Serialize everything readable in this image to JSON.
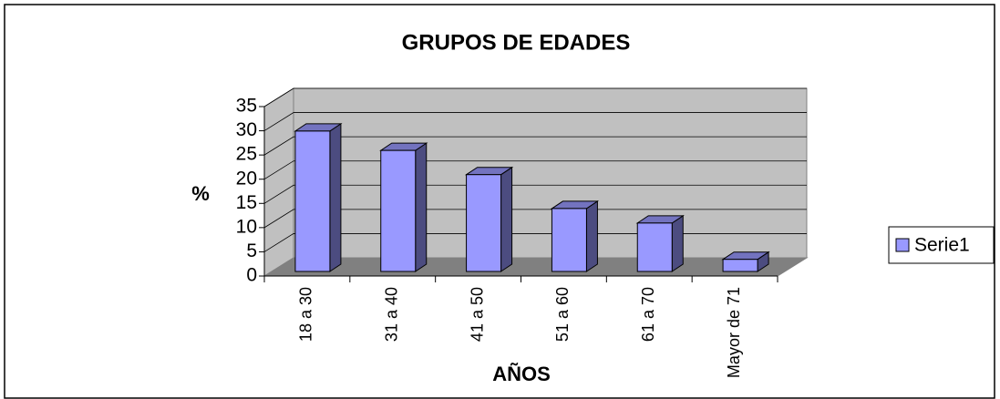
{
  "chart_data": {
    "type": "bar3d",
    "title": "GRUPOS DE EDADES",
    "x_label": "AÑOS",
    "y_label": "%",
    "categories": [
      "18 a 30",
      "31 a 40",
      "41 a 50",
      "51 a 60",
      "61 a 70",
      "Mayor de 71"
    ],
    "series": [
      {
        "name": "Serie1",
        "color": "#9999ff",
        "values": [
          29,
          25,
          20,
          13,
          10,
          2.5
        ]
      }
    ],
    "ylim": [
      0,
      35
    ],
    "yticks": [
      0,
      5,
      10,
      15,
      20,
      25,
      30,
      35
    ],
    "grid": true,
    "legend": "right"
  }
}
